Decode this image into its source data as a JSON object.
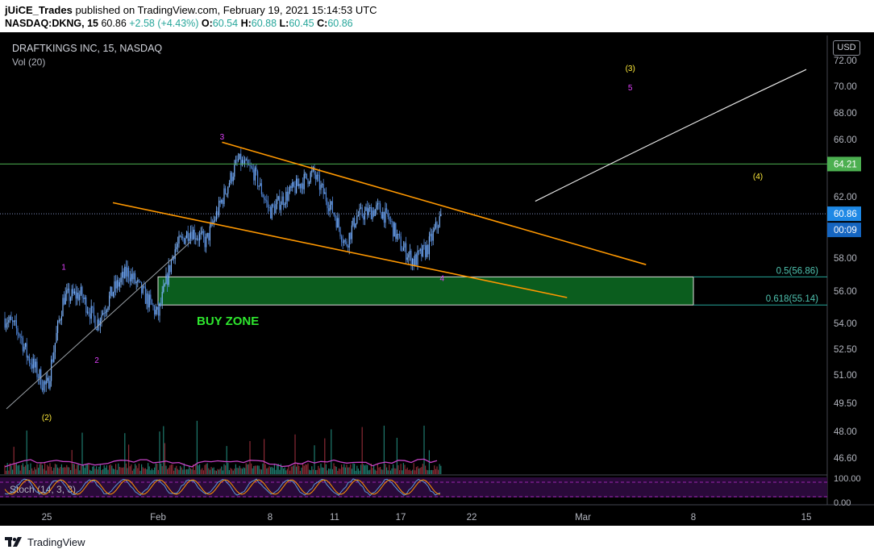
{
  "header": {
    "author": "jUiCE_Trades",
    "published_text": "published on TradingView.com, February 19, 2021 15:14:53 UTC",
    "symbol_line": "NASDAQ:DKNG, 15",
    "last": "60.86",
    "change": "+2.58 (+4.43%)",
    "o_label": "O:",
    "o_value": "60.54",
    "h_label": "H:",
    "h_value": "60.88",
    "l_label": "L:",
    "l_value": "60.45",
    "c_label": "C:",
    "c_value": "60.86"
  },
  "legend": {
    "symbol": "DRAFTKINGS INC, 15, NASDAQ",
    "volume": "Vol (20)",
    "stoch": "Stoch (14, 3, 3)"
  },
  "currency_button": "USD",
  "footer": {
    "brand": "TradingView"
  },
  "colors": {
    "background": "#000000",
    "up": "#26a69a",
    "candles": "#6ea8fe",
    "channel": "#ff9800",
    "horizontal_line": "#4caf50",
    "buy_zone": "#0b5d1e",
    "wave_yellow": "#ffeb3b",
    "wave_magenta": "#e040fb",
    "volume_ma": "#c542c5",
    "stoch_panel": "#2a0a3a"
  },
  "chart_data": {
    "type": "candlestick",
    "title": "DRAFTKINGS INC, 15, NASDAQ",
    "x_ticks": [
      "25",
      "Feb",
      "8",
      "11",
      "17",
      "22",
      "Mar",
      "8",
      "15"
    ],
    "y_ticks": [
      "72.00",
      "70.00",
      "68.00",
      "66.00",
      "64.00",
      "62.00",
      "60.00",
      "58.00",
      "56.00",
      "54.00",
      "52.50",
      "51.00",
      "49.50",
      "48.00",
      "46.60"
    ],
    "ylim": [
      45.5,
      73.5
    ],
    "stoch_ticks": [
      "100.00",
      "0.00"
    ],
    "price_labels": [
      {
        "label": "64.21",
        "value": 64.21
      },
      {
        "label": "60.86",
        "value": 60.86
      },
      {
        "label": "00:09",
        "value": 59.9
      }
    ],
    "horizontal_line": {
      "value": 64.21
    },
    "last_price_line": {
      "value": 60.86
    },
    "fib_levels": [
      {
        "label": "0.5(56.86)",
        "value": 56.86
      },
      {
        "label": "0.618(55.14)",
        "value": 55.14
      }
    ],
    "zone": {
      "label": "BUY ZONE",
      "from": "Feb 1",
      "to": "Mar 8",
      "top": 56.86,
      "bottom": 55.14
    },
    "wave_labels": [
      {
        "text": "(2)",
        "x": "Jan 25",
        "y": 48.6,
        "color": "yellow"
      },
      {
        "text": "1",
        "x": "Jan 26",
        "y": 57.3,
        "color": "magenta"
      },
      {
        "text": "2",
        "x": "Jan 28",
        "y": 51.7,
        "color": "magenta"
      },
      {
        "text": "3",
        "x": "Feb 5",
        "y": 66.0,
        "color": "magenta"
      },
      {
        "text": "4",
        "x": "Feb 20",
        "y": 56.6,
        "color": "magenta"
      },
      {
        "text": "(3)",
        "x": "Mar 4",
        "y": 71.2,
        "color": "yellow"
      },
      {
        "text": "5",
        "x": "Mar 4",
        "y": 69.7,
        "color": "magenta"
      },
      {
        "text": "(4)",
        "x": "Mar 12",
        "y": 63.2,
        "color": "yellow"
      }
    ],
    "channel_upper": [
      {
        "x": "Feb 5",
        "y": 65.8
      },
      {
        "x": "Mar 5",
        "y": 57.6
      }
    ],
    "channel_lower": [
      {
        "x": "Jan 29",
        "y": 61.6
      },
      {
        "x": "Feb 28",
        "y": 55.6
      }
    ],
    "trend_line": [
      {
        "x": "Jan 19",
        "y": 49.2
      },
      {
        "x": "Feb 3",
        "y": 59.0
      }
    ],
    "projection_curve": [
      {
        "x": "Feb 26",
        "y": 61.7
      },
      {
        "x": "Mar 8",
        "y": 66.2
      },
      {
        "x": "Mar 15",
        "y": 71.3
      }
    ],
    "price_path": [
      {
        "x": "Jan 19",
        "y": 54.3
      },
      {
        "x": "Jan 21",
        "y": 53.4
      },
      {
        "x": "Jan 22",
        "y": 52.2
      },
      {
        "x": "Jan 25",
        "y": 50.2
      },
      {
        "x": "Jan 26",
        "y": 55.6
      },
      {
        "x": "Jan 27",
        "y": 55.8
      },
      {
        "x": "Jan 28",
        "y": 54.0
      },
      {
        "x": "Jan 29",
        "y": 56.0
      },
      {
        "x": "Jan 30",
        "y": 57.2
      },
      {
        "x": "Feb 1",
        "y": 54.5
      },
      {
        "x": "Feb 2",
        "y": 58.5
      },
      {
        "x": "Feb 3",
        "y": 59.8
      },
      {
        "x": "Feb 4",
        "y": 59.0
      },
      {
        "x": "Feb 5",
        "y": 61.8
      },
      {
        "x": "Feb 6",
        "y": 64.5
      },
      {
        "x": "Feb 7",
        "y": 63.6
      },
      {
        "x": "Feb 8",
        "y": 61.0
      },
      {
        "x": "Feb 9",
        "y": 62.4
      },
      {
        "x": "Feb 10",
        "y": 63.6
      },
      {
        "x": "Feb 11",
        "y": 60.8
      },
      {
        "x": "Feb 12",
        "y": 58.8
      },
      {
        "x": "Feb 13",
        "y": 60.7
      },
      {
        "x": "Feb 15",
        "y": 61.2
      },
      {
        "x": "Feb 16",
        "y": 60.4
      },
      {
        "x": "Feb 17",
        "y": 58.8
      },
      {
        "x": "Feb 18",
        "y": 57.8
      },
      {
        "x": "Feb 19",
        "y": 58.6
      },
      {
        "x": "Feb 20",
        "y": 60.86
      }
    ]
  }
}
